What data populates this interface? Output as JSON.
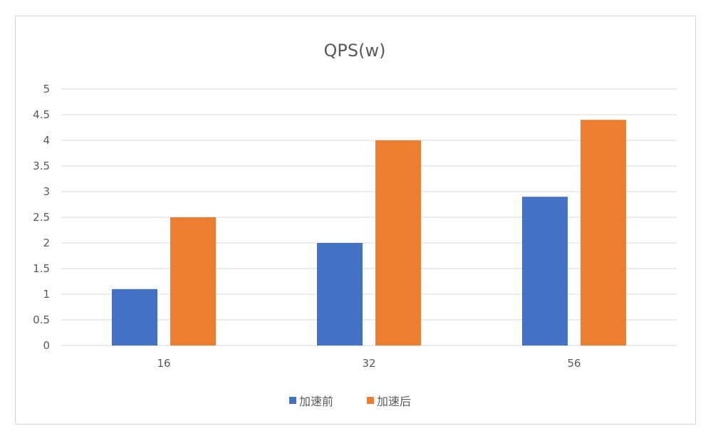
{
  "chart_data": {
    "type": "bar",
    "title": "QPS(w)",
    "xlabel": "",
    "ylabel": "",
    "categories": [
      "16",
      "32",
      "56"
    ],
    "series": [
      {
        "name": "加速前",
        "values": [
          1.1,
          2.0,
          2.9
        ],
        "color": "#4472c4"
      },
      {
        "name": "加速后",
        "values": [
          2.5,
          4.0,
          4.4
        ],
        "color": "#ed7d31"
      }
    ],
    "ylim": [
      0,
      5
    ],
    "yticks": [
      "0",
      "0.5",
      "1",
      "1.5",
      "2",
      "2.5",
      "3",
      "3.5",
      "4",
      "4.5",
      "5"
    ],
    "grid": true,
    "legend_position": "bottom"
  }
}
